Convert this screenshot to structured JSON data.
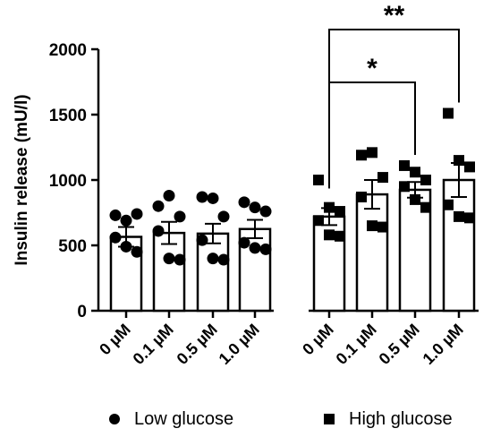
{
  "chart_data": {
    "type": "bar",
    "ylabel": "Insulin release (mU/l)",
    "ylim": [
      0,
      2000
    ],
    "yticks": [
      0,
      500,
      1000,
      1500,
      2000
    ],
    "categories": [
      "0 µM",
      "0.1 µM",
      "0.5 µM",
      "1.0 µM",
      "0 µM",
      "0.1 µM",
      "0.5 µM",
      "1.0 µM"
    ],
    "groups": [
      {
        "name": "Low glucose",
        "marker": "circle",
        "bars": [
          {
            "label": "0 µM",
            "mean": 565,
            "sem": 75,
            "points": [
              560,
              690,
              740,
              730,
              490,
              450
            ]
          },
          {
            "label": "0.1 µM",
            "mean": 595,
            "sem": 85,
            "points": [
              800,
              880,
              720,
              610,
              400,
              390
            ]
          },
          {
            "label": "0.5 µM",
            "mean": 590,
            "sem": 75,
            "points": [
              870,
              860,
              720,
              540,
              400,
              390
            ]
          },
          {
            "label": "1.0 µM",
            "mean": 625,
            "sem": 70,
            "points": [
              830,
              790,
              760,
              520,
              480,
              470
            ]
          }
        ]
      },
      {
        "name": "High glucose",
        "marker": "square",
        "bars": [
          {
            "label": "0 µM",
            "mean": 720,
            "sem": 65,
            "points": [
              1000,
              790,
              760,
              690,
              580,
              570
            ]
          },
          {
            "label": "0.1 µM",
            "mean": 890,
            "sem": 110,
            "points": [
              1190,
              1210,
              1020,
              870,
              650,
              640
            ]
          },
          {
            "label": "0.5 µM",
            "mean": 925,
            "sem": 60,
            "points": [
              1110,
              1060,
              1000,
              950,
              850,
              790
            ]
          },
          {
            "label": "1.0 µM",
            "mean": 1000,
            "sem": 130,
            "points": [
              1510,
              1150,
              1100,
              810,
              720,
              710
            ]
          }
        ]
      }
    ],
    "significance": [
      {
        "from_group": 1,
        "from_bar": 0,
        "to_group": 1,
        "to_bar": 2,
        "label": "*"
      },
      {
        "from_group": 1,
        "from_bar": 0,
        "to_group": 1,
        "to_bar": 3,
        "label": "**"
      }
    ]
  },
  "legend": {
    "low_label": "Low glucose",
    "high_label": "High glucose"
  }
}
